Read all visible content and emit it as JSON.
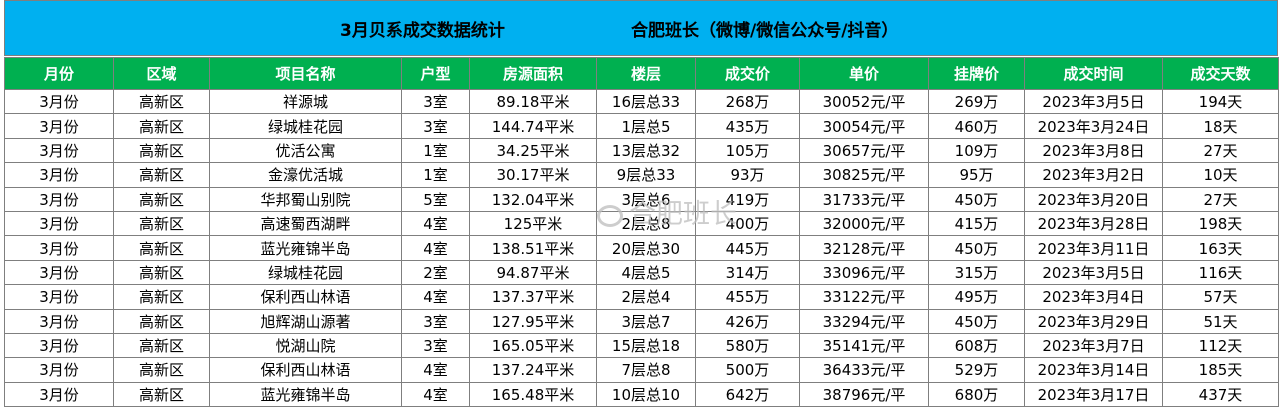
{
  "title": {
    "left": "3月贝系成交数据统计",
    "right": "合肥班长（微博/微信公众号/抖音）"
  },
  "headers": [
    "月份",
    "区域",
    "项目名称",
    "户型",
    "房源面积",
    "楼层",
    "成交价",
    "单价",
    "挂牌价",
    "成交时间",
    "成交天数"
  ],
  "rows": [
    [
      "3月份",
      "高新区",
      "祥源城",
      "3室",
      "89.18平米",
      "16层总33",
      "268万",
      "30052元/平",
      "269万",
      "2023年3月5日",
      "194天"
    ],
    [
      "3月份",
      "高新区",
      "绿城桂花园",
      "3室",
      "144.74平米",
      "1层总5",
      "435万",
      "30054元/平",
      "460万",
      "2023年3月24日",
      "18天"
    ],
    [
      "3月份",
      "高新区",
      "优活公寓",
      "1室",
      "34.25平米",
      "13层总32",
      "105万",
      "30657元/平",
      "109万",
      "2023年3月8日",
      "27天"
    ],
    [
      "3月份",
      "高新区",
      "金濠优活城",
      "1室",
      "30.17平米",
      "9层总33",
      "93万",
      "30825元/平",
      "95万",
      "2023年3月2日",
      "10天"
    ],
    [
      "3月份",
      "高新区",
      "华邦蜀山别院",
      "5室",
      "132.04平米",
      "3层总6",
      "419万",
      "31733元/平",
      "450万",
      "2023年3月20日",
      "27天"
    ],
    [
      "3月份",
      "高新区",
      "高速蜀西湖畔",
      "4室",
      "125平米",
      "2层总8",
      "400万",
      "32000元/平",
      "415万",
      "2023年3月28日",
      "198天"
    ],
    [
      "3月份",
      "高新区",
      "蓝光雍锦半岛",
      "4室",
      "138.51平米",
      "20层总30",
      "445万",
      "32128元/平",
      "450万",
      "2023年3月11日",
      "163天"
    ],
    [
      "3月份",
      "高新区",
      "绿城桂花园",
      "2室",
      "94.87平米",
      "4层总5",
      "314万",
      "33096元/平",
      "315万",
      "2023年3月5日",
      "116天"
    ],
    [
      "3月份",
      "高新区",
      "保利西山林语",
      "4室",
      "137.37平米",
      "2层总4",
      "455万",
      "33122元/平",
      "495万",
      "2023年3月4日",
      "57天"
    ],
    [
      "3月份",
      "高新区",
      "旭辉湖山源著",
      "3室",
      "127.95平米",
      "3层总7",
      "426万",
      "33294元/平",
      "450万",
      "2023年3月29日",
      "51天"
    ],
    [
      "3月份",
      "高新区",
      "悦湖山院",
      "3室",
      "165.05平米",
      "15层总18",
      "580万",
      "35141元/平",
      "608万",
      "2023年3月7日",
      "112天"
    ],
    [
      "3月份",
      "高新区",
      "保利西山林语",
      "4室",
      "137.24平米",
      "7层总8",
      "500万",
      "36433元/平",
      "529万",
      "2023年3月14日",
      "185天"
    ],
    [
      "3月份",
      "高新区",
      "蓝光雍锦半岛",
      "4室",
      "165.48平米",
      "10层总10",
      "642万",
      "38796元/平",
      "680万",
      "2023年3月17日",
      "437天"
    ]
  ],
  "watermark": "合肥班长",
  "colors": {
    "title_bg": "#00b0f0",
    "header_bg": "#00b050",
    "header_text": "#ffffff",
    "border": "#7f7f7f"
  }
}
